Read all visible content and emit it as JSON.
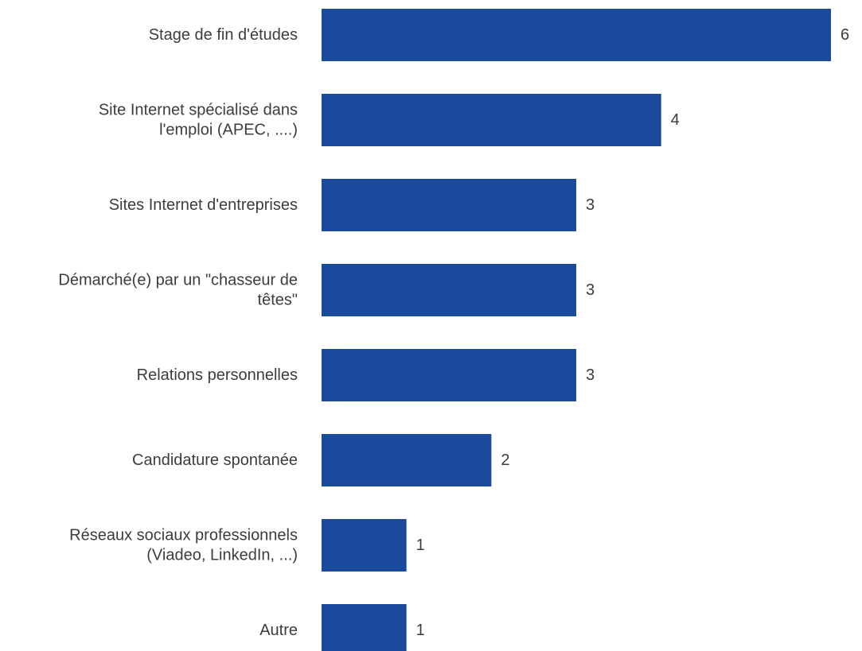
{
  "chart_data": {
    "type": "bar",
    "orientation": "horizontal",
    "title": "",
    "xlabel": "",
    "ylabel": "",
    "categories": [
      [
        "Stage de fin d'études"
      ],
      [
        "Site Internet spécialisé dans",
        "l'emploi (APEC, ....)"
      ],
      [
        "Sites Internet d'entreprises"
      ],
      [
        "Démarché(e) par un \"chasseur de",
        "têtes\""
      ],
      [
        "Relations personnelles"
      ],
      [
        "Candidature spontanée"
      ],
      [
        "Réseaux sociaux professionnels",
        "(Viadeo, LinkedIn, ...)"
      ],
      [
        "Autre"
      ]
    ],
    "values": [
      6,
      4,
      3,
      3,
      3,
      2,
      1,
      1
    ],
    "xlim": [
      0,
      6
    ],
    "grid": false,
    "legend": "none",
    "bar_color": "#1a4a9c",
    "text_color": "#3c3c3c"
  }
}
